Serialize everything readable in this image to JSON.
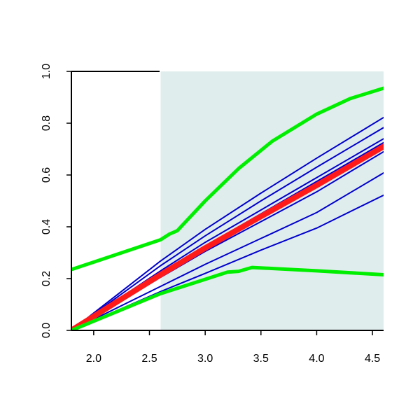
{
  "chart_data": {
    "type": "line",
    "title": "",
    "xlabel": "",
    "ylabel": "",
    "xlim": [
      1.8,
      4.6
    ],
    "ylim": [
      0,
      1
    ],
    "x_ticks": [
      2.0,
      2.5,
      3.0,
      3.5,
      4.0,
      4.5
    ],
    "x_tick_labels": [
      "2.0",
      "2.5",
      "3.0",
      "3.5",
      "4.0",
      "4.5"
    ],
    "y_ticks": [
      0.0,
      0.2,
      0.4,
      0.6,
      0.8,
      1.0
    ],
    "y_tick_labels": [
      "0.0",
      "0.2",
      "0.4",
      "0.6",
      "0.8",
      "1.0"
    ],
    "grid": false,
    "legend": "none",
    "shaded_region": {
      "x_from": 2.6,
      "x_to": 4.6,
      "color": "#e0eded"
    },
    "series": [
      {
        "color": "#0000cc",
        "role": "sample",
        "x": [
          1.8,
          2.6,
          3.0,
          3.5,
          4.0,
          4.6
        ],
        "y": [
          0.0,
          0.268,
          0.39,
          0.53,
          0.665,
          0.822
        ]
      },
      {
        "color": "#0000cc",
        "role": "sample",
        "x": [
          1.8,
          2.6,
          3.0,
          3.5,
          4.0,
          4.6
        ],
        "y": [
          0.0,
          0.25,
          0.365,
          0.5,
          0.63,
          0.783
        ]
      },
      {
        "color": "#0000cc",
        "role": "sample",
        "x": [
          1.8,
          2.6,
          3.0,
          3.5,
          4.0,
          4.6
        ],
        "y": [
          0.0,
          0.23,
          0.34,
          0.465,
          0.59,
          0.74
        ]
      },
      {
        "color": "#0000cc",
        "role": "sample",
        "x": [
          1.8,
          2.6,
          3.0,
          3.5,
          4.0,
          4.6
        ],
        "y": [
          0.0,
          0.218,
          0.325,
          0.45,
          0.575,
          0.725
        ]
      },
      {
        "color": "#0000cc",
        "role": "sample",
        "x": [
          1.8,
          2.6,
          3.0,
          3.5,
          4.0,
          4.6
        ],
        "y": [
          0.0,
          0.205,
          0.305,
          0.42,
          0.535,
          0.69
        ]
      },
      {
        "color": "#0000cc",
        "role": "sample",
        "x": [
          1.8,
          2.6,
          3.0,
          3.5,
          4.0,
          4.6
        ],
        "y": [
          0.0,
          0.17,
          0.255,
          0.355,
          0.455,
          0.608
        ]
      },
      {
        "color": "#0000cc",
        "role": "sample",
        "x": [
          1.8,
          2.6,
          3.0,
          3.5,
          4.0,
          4.6
        ],
        "y": [
          0.0,
          0.15,
          0.22,
          0.31,
          0.395,
          0.522
        ]
      },
      {
        "color": "#ff1a1a",
        "role": "mean",
        "x": [
          1.8,
          2.2,
          2.6,
          3.0,
          3.5,
          4.0,
          4.6
        ],
        "y": [
          0.0,
          0.108,
          0.215,
          0.318,
          0.44,
          0.56,
          0.71
        ]
      },
      {
        "color": "#00ee00",
        "role": "upper",
        "x": [
          1.8,
          2.6,
          2.68,
          2.75,
          3.0,
          3.3,
          3.6,
          4.0,
          4.3,
          4.6
        ],
        "y": [
          0.235,
          0.35,
          0.372,
          0.385,
          0.5,
          0.625,
          0.73,
          0.835,
          0.895,
          0.935
        ]
      },
      {
        "color": "#00ee00",
        "role": "lower",
        "x": [
          1.8,
          2.6,
          3.2,
          3.3,
          3.42,
          4.0,
          4.6
        ],
        "y": [
          0.0,
          0.142,
          0.225,
          0.228,
          0.243,
          0.23,
          0.215
        ]
      }
    ]
  }
}
